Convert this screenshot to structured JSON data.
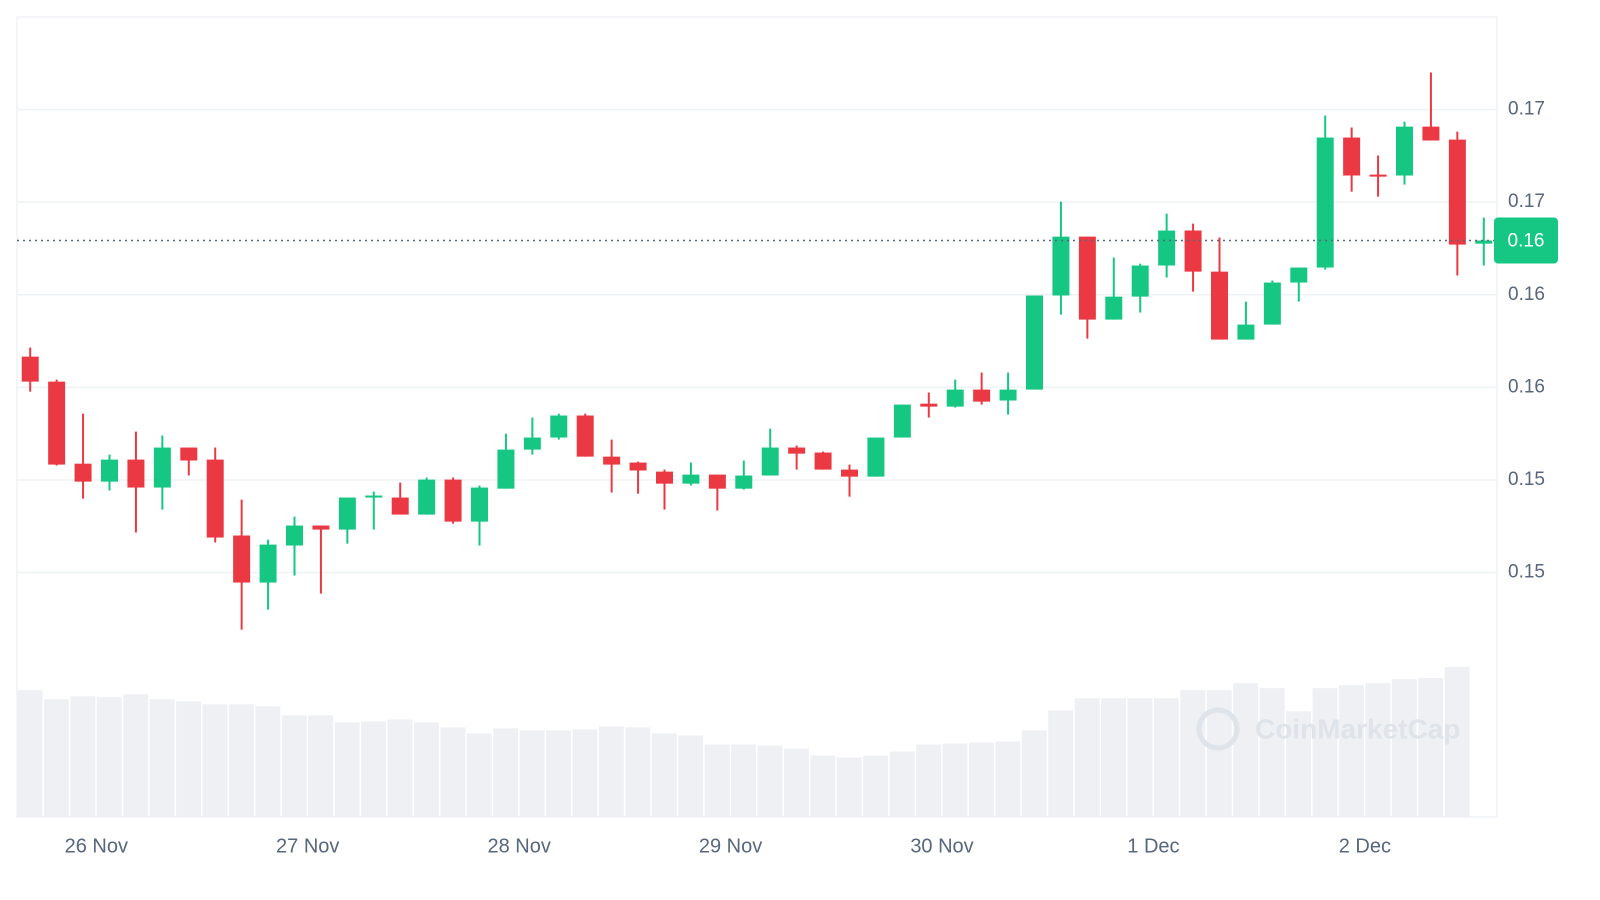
{
  "chart_data": {
    "type": "candlestick",
    "categories": [
      null,
      null,
      null,
      "26 Nov",
      null,
      null,
      null,
      null,
      null,
      null,
      null,
      "27 Nov",
      null,
      null,
      null,
      null,
      null,
      null,
      null,
      "28 Nov",
      null,
      null,
      null,
      null,
      null,
      null,
      null,
      "29 Nov",
      null,
      null,
      null,
      null,
      null,
      null,
      null,
      "30 Nov",
      null,
      null,
      null,
      null,
      null,
      null,
      null,
      "1 Dec",
      null,
      null,
      null,
      null,
      null,
      null,
      null,
      "2 Dec",
      null,
      null,
      null,
      null
    ],
    "open": [
      0.15666,
      0.15531,
      0.15088,
      0.14991,
      0.1511,
      0.14959,
      0.15175,
      0.1511,
      0.147,
      0.14446,
      0.14646,
      0.14754,
      0.14732,
      0.14905,
      0.14905,
      0.14813,
      0.15002,
      0.14775,
      0.14953,
      0.15164,
      0.15229,
      0.15348,
      0.15126,
      0.15094,
      0.15045,
      0.1498,
      0.15029,
      0.14953,
      0.15024,
      0.15175,
      0.15148,
      0.15056,
      0.15018,
      0.15229,
      0.15412,
      0.15396,
      0.15488,
      0.15429,
      0.15488,
      0.15996,
      0.16314,
      0.15866,
      0.1599,
      0.16158,
      0.16347,
      0.16125,
      0.15758,
      0.15839,
      0.16066,
      0.16147,
      0.16849,
      0.16649,
      0.16644,
      0.16908,
      0.16838,
      0.16276
    ],
    "high": [
      0.15715,
      0.15542,
      0.15358,
      0.15137,
      0.15261,
      0.1524,
      0.15175,
      0.15175,
      0.14894,
      0.14678,
      0.14802,
      0.14754,
      0.14905,
      0.14937,
      0.14986,
      0.15013,
      0.15013,
      0.1497,
      0.1525,
      0.15337,
      0.15358,
      0.15358,
      0.15218,
      0.15099,
      0.15056,
      0.15094,
      0.15029,
      0.15105,
      0.15277,
      0.15186,
      0.15153,
      0.15083,
      0.15229,
      0.15407,
      0.15472,
      0.15542,
      0.1558,
      0.1558,
      0.15996,
      0.16503,
      0.16314,
      0.16201,
      0.16168,
      0.16438,
      0.16384,
      0.16309,
      0.15963,
      0.16077,
      0.16147,
      0.16968,
      0.16903,
      0.16752,
      0.16935,
      0.172,
      0.16881,
      0.16417
    ],
    "low": [
      0.15477,
      0.15078,
      0.14899,
      0.14943,
      0.14716,
      0.1484,
      0.15024,
      0.14662,
      0.14192,
      0.143,
      0.14484,
      0.14386,
      0.14656,
      0.14732,
      0.14813,
      0.14813,
      0.14764,
      0.14646,
      0.14953,
      0.15137,
      0.15218,
      0.15126,
      0.14932,
      0.14926,
      0.1484,
      0.1497,
      0.14835,
      0.14948,
      0.15024,
      0.15056,
      0.15056,
      0.1491,
      0.15018,
      0.15229,
      0.15337,
      0.15391,
      0.15407,
      0.15353,
      0.15488,
      0.15893,
      0.15763,
      0.15866,
      0.15904,
      0.16093,
      0.16017,
      0.15758,
      0.15758,
      0.15839,
      0.15963,
      0.16136,
      0.16557,
      0.1653,
      0.16595,
      0.16833,
      0.16104,
      0.16158
    ],
    "close": [
      0.15531,
      0.15083,
      0.14991,
      0.1511,
      0.14959,
      0.15175,
      0.15105,
      0.14689,
      0.14446,
      0.14651,
      0.14754,
      0.14732,
      0.14905,
      0.14916,
      0.14813,
      0.15002,
      0.14775,
      0.14959,
      0.15164,
      0.15229,
      0.15348,
      0.15126,
      0.15083,
      0.15051,
      0.1498,
      0.15029,
      0.14953,
      0.15024,
      0.15175,
      0.15142,
      0.15056,
      0.15018,
      0.15229,
      0.15407,
      0.15396,
      0.15488,
      0.15423,
      0.15488,
      0.15996,
      0.16314,
      0.15866,
      0.1599,
      0.16158,
      0.16347,
      0.16125,
      0.15758,
      0.15839,
      0.16066,
      0.16147,
      0.16849,
      0.16644,
      0.16638,
      0.16908,
      0.16833,
      0.16271,
      0.16293
    ],
    "volume": [
      126,
      117,
      120,
      119,
      122,
      117,
      115,
      112,
      112,
      110,
      101,
      101,
      94,
      95,
      97,
      94,
      89,
      83,
      88,
      86,
      86,
      87,
      90,
      89,
      83,
      81,
      72,
      72,
      71,
      68,
      61,
      59,
      61,
      65,
      72,
      73,
      74,
      75,
      86,
      106,
      118,
      118,
      118,
      118,
      126,
      126,
      133,
      128,
      105,
      128,
      131,
      133,
      137,
      138,
      149,
      null
    ],
    "up_color": "#16c784",
    "down_color": "#ea3943",
    "volume_color": "#eef0f4",
    "ylim": [
      0.1318,
      0.175
    ],
    "yticks": [
      {
        "value": 0.145,
        "label": "0.15"
      },
      {
        "value": 0.15,
        "label": "0.15"
      },
      {
        "value": 0.155,
        "label": "0.16"
      },
      {
        "value": 0.16,
        "label": "0.16"
      },
      {
        "value": 0.165,
        "label": "0.17"
      },
      {
        "value": 0.17,
        "label": "0.17"
      }
    ],
    "grid": true,
    "current_price": {
      "value": 0.16293,
      "label": "0.16"
    },
    "watermark": "CoinMarketCap"
  }
}
